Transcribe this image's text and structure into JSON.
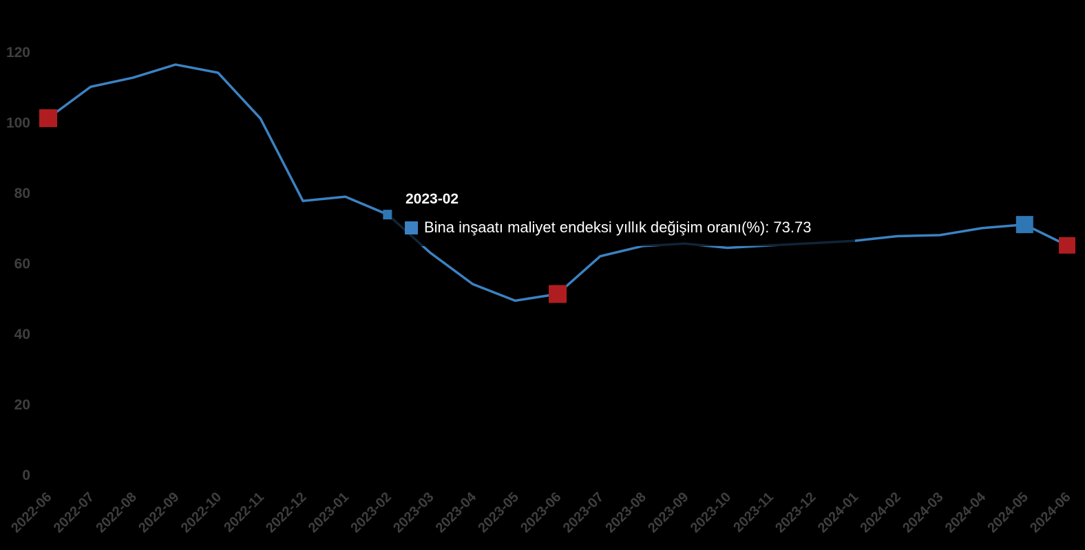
{
  "colors": {
    "background": "#000000",
    "line": "#3c82c2",
    "marker_blue": "#2e77b4",
    "marker_red": "#b01d20",
    "axis_label": "#3f3f3f",
    "tooltip_text": "#ffffff"
  },
  "tooltip": {
    "title": "2023-02",
    "series_name": "Bina inşaatı maliyet endeksi yıllık değişim oranı(%)",
    "value": "73.73",
    "text": "Bina inşaatı maliyet endeksi yıllık değişim oranı(%): 73.73"
  },
  "chart_data": {
    "type": "line",
    "title": "",
    "xlabel": "",
    "ylabel": "",
    "grid": false,
    "legend_position": "none",
    "ylim": [
      0,
      120
    ],
    "yticks": [
      0,
      20,
      40,
      60,
      80,
      100,
      120
    ],
    "x": [
      "2022-06",
      "2022-07",
      "2022-08",
      "2022-09",
      "2022-10",
      "2022-11",
      "2022-12",
      "2023-01",
      "2023-02",
      "2023-03",
      "2023-04",
      "2023-05",
      "2023-06",
      "2023-07",
      "2023-08",
      "2023-09",
      "2023-10",
      "2023-11",
      "2023-12",
      "2024-01",
      "2024-02",
      "2024-03",
      "2024-04",
      "2024-05",
      "2024-06"
    ],
    "series": [
      {
        "name": "Bina inşaatı maliyet endeksi yıllık değişim oranı(%)",
        "color": "#3c82c2",
        "values": [
          101.1,
          110.0,
          112.6,
          116.3,
          114.0,
          101.0,
          77.6,
          78.8,
          73.73,
          62.9,
          54.0,
          49.3,
          51.2,
          61.9,
          64.8,
          65.5,
          64.3,
          65.0,
          65.6,
          66.3,
          67.6,
          67.9,
          69.9,
          70.9,
          65.0
        ]
      }
    ],
    "highlight_markers": [
      {
        "x": "2022-06",
        "value": 101.1,
        "color": "#b01d20",
        "size": 26
      },
      {
        "x": "2023-02",
        "value": 73.73,
        "color": "#2e77b4",
        "size": 14
      },
      {
        "x": "2023-06",
        "value": 51.2,
        "color": "#b01d20",
        "size": 26
      },
      {
        "x": "2024-05",
        "value": 70.9,
        "color": "#2e77b4",
        "size": 25
      },
      {
        "x": "2024-06",
        "value": 65.0,
        "color": "#b01d20",
        "size": 24
      }
    ],
    "hovered_point": "2023-02"
  }
}
